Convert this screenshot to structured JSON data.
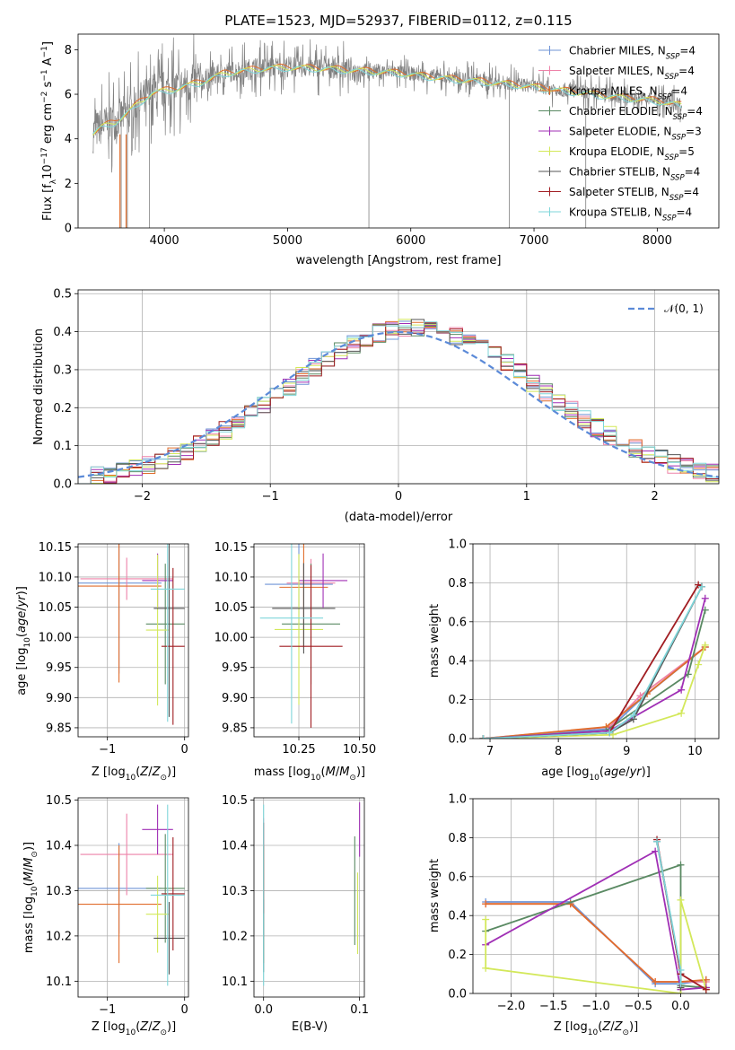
{
  "colors": {
    "chab_miles": "#6f94d6",
    "salp_miles": "#ee82a8",
    "krou_miles": "#e06d2c",
    "chab_elodie": "#5a8a63",
    "salp_elodie": "#a02fb5",
    "krou_elodie": "#d3e85a",
    "chab_stelib": "#555555",
    "salp_stelib": "#a11d22",
    "krou_stelib": "#7fd6da",
    "spec_grey": "#808080",
    "gauss": "#5b8ad8"
  },
  "chart_data": [
    {
      "id": "spectrum",
      "type": "line",
      "title": "PLATE=1523, MJD=52937, FIBERID=0112, z=0.115",
      "xlabel": "wavelength [Angstrom, rest frame]",
      "ylabel": "Flux [f",
      "ylabel_parts": [
        "Flux [f",
        "λ",
        "10",
        "−17",
        " erg cm",
        "−2",
        " s",
        "−1",
        " A",
        "−1",
        "]"
      ],
      "xlim": [
        3300,
        8500
      ],
      "ylim": [
        0,
        8.7
      ],
      "xticks": [
        4000,
        5000,
        6000,
        7000,
        8000
      ],
      "yticks": [
        0,
        2,
        4,
        6,
        8
      ],
      "legend": [
        {
          "name": "Chabrier MILES, N",
          "sub": "SSP",
          "val": "=4",
          "color_key": "chab_miles"
        },
        {
          "name": "Salpeter MILES, N",
          "sub": "SSP",
          "val": "=4",
          "color_key": "salp_miles"
        },
        {
          "name": "Kroupa MILES, N",
          "sub": "SSP",
          "val": "=4",
          "color_key": "krou_miles"
        },
        {
          "name": "Chabrier ELODIE, N",
          "sub": "SSP",
          "val": "=4",
          "color_key": "chab_elodie"
        },
        {
          "name": "Salpeter ELODIE, N",
          "sub": "SSP",
          "val": "=3",
          "color_key": "salp_elodie"
        },
        {
          "name": "Kroupa ELODIE, N",
          "sub": "SSP",
          "val": "=5",
          "color_key": "krou_elodie"
        },
        {
          "name": "Chabrier STELIB, N",
          "sub": "SSP",
          "val": "=4",
          "color_key": "chab_stelib"
        },
        {
          "name": "Salpeter STELIB, N",
          "sub": "SSP",
          "val": "=4",
          "color_key": "salp_stelib"
        },
        {
          "name": "Kroupa STELIB, N",
          "sub": "SSP",
          "val": "=4",
          "color_key": "krou_stelib"
        }
      ],
      "continuum": [
        [
          3420,
          4.3
        ],
        [
          3500,
          4.6
        ],
        [
          3600,
          4.8
        ],
        [
          3700,
          5.2
        ],
        [
          3800,
          5.7
        ],
        [
          3900,
          6.1
        ],
        [
          4000,
          6.2
        ],
        [
          4100,
          6.3
        ],
        [
          4300,
          6.6
        ],
        [
          4500,
          7.0
        ],
        [
          4800,
          7.2
        ],
        [
          5000,
          7.25
        ],
        [
          5300,
          7.2
        ],
        [
          5600,
          7.1
        ],
        [
          5900,
          7.0
        ],
        [
          6200,
          6.8
        ],
        [
          6500,
          6.65
        ],
        [
          6800,
          6.5
        ],
        [
          7100,
          6.3
        ],
        [
          7400,
          6.1
        ],
        [
          7700,
          5.9
        ],
        [
          8000,
          5.75
        ],
        [
          8200,
          5.55
        ]
      ],
      "spikes_down": [
        3650,
        3700,
        3880,
        5660,
        6800,
        7420
      ],
      "noise_amp": 0.9
    },
    {
      "id": "residuals",
      "type": "step",
      "xlabel": "(data-model)/error",
      "ylabel": "Normed distribution",
      "xlim": [
        -2.5,
        2.5
      ],
      "ylim": [
        0,
        0.51
      ],
      "xticks": [
        -2,
        -1,
        0,
        1,
        2
      ],
      "yticks": [
        0.0,
        0.1,
        0.2,
        0.3,
        0.4,
        0.5
      ],
      "legend_label": "𝒩(0, 1)",
      "bin_width": 0.1
    },
    {
      "id": "age_vs_Z",
      "type": "errorbar",
      "xlabel": "Z [log",
      "ylabel": "age  [log",
      "xlim": [
        -1.38,
        0.05
      ],
      "ylim": [
        9.835,
        10.155
      ],
      "xticks": [
        -1,
        0
      ],
      "yticks": [
        9.85,
        9.9,
        9.95,
        10.0,
        10.05,
        10.1,
        10.15
      ],
      "points": [
        {
          "color_key": "chab_miles",
          "x": -0.85,
          "xe": 0.55,
          "y": 10.09,
          "ye": 0.15
        },
        {
          "color_key": "salp_miles",
          "x": -0.75,
          "xe": 0.6,
          "y": 10.097,
          "ye": 0.035
        },
        {
          "color_key": "krou_miles",
          "x": -0.85,
          "xe": 0.55,
          "y": 10.085,
          "ye": 0.16
        },
        {
          "color_key": "chab_elodie",
          "x": -0.25,
          "xe": 0.25,
          "y": 10.022,
          "ye": 0.1
        },
        {
          "color_key": "salp_elodie",
          "x": -0.35,
          "xe": 0.2,
          "y": 10.094,
          "ye": 0.045
        },
        {
          "color_key": "krou_elodie",
          "x": -0.35,
          "xe": 0.15,
          "y": 10.012,
          "ye": 0.125
        },
        {
          "color_key": "chab_stelib",
          "x": -0.2,
          "xe": 0.2,
          "y": 10.048,
          "ye": 0.18
        },
        {
          "color_key": "salp_stelib",
          "x": -0.15,
          "xe": 0.15,
          "y": 9.985,
          "ye": 0.13
        },
        {
          "color_key": "krou_stelib",
          "x": -0.22,
          "xe": 0.22,
          "y": 10.08,
          "ye": 0.22
        }
      ]
    },
    {
      "id": "age_vs_mass",
      "type": "errorbar",
      "xlabel": "mass [log",
      "ylabel": "",
      "xlim": [
        10.065,
        10.52
      ],
      "ylim": [
        9.835,
        10.155
      ],
      "xticks": [
        10.25,
        10.5
      ],
      "yticks": [
        9.85,
        9.9,
        9.95,
        10.0,
        10.05,
        10.1,
        10.15
      ],
      "points": [
        {
          "color_key": "chab_miles",
          "x": 10.25,
          "xe": 0.14,
          "y": 10.088,
          "ye": 0.09
        },
        {
          "color_key": "salp_miles",
          "x": 10.3,
          "xe": 0.1,
          "y": 10.09,
          "ye": 0.04
        },
        {
          "color_key": "krou_miles",
          "x": 10.27,
          "xe": 0.1,
          "y": 10.083,
          "ye": 0.1
        },
        {
          "color_key": "chab_elodie",
          "x": 10.3,
          "xe": 0.12,
          "y": 10.022,
          "ye": 0.1
        },
        {
          "color_key": "salp_elodie",
          "x": 10.35,
          "xe": 0.1,
          "y": 10.094,
          "ye": 0.045
        },
        {
          "color_key": "krou_elodie",
          "x": 10.25,
          "xe": 0.1,
          "y": 10.013,
          "ye": 0.125
        },
        {
          "color_key": "chab_stelib",
          "x": 10.27,
          "xe": 0.13,
          "y": 10.048,
          "ye": 0.075
        },
        {
          "color_key": "salp_stelib",
          "x": 10.3,
          "xe": 0.13,
          "y": 9.985,
          "ye": 0.135
        },
        {
          "color_key": "krou_stelib",
          "x": 10.22,
          "xe": 0.13,
          "y": 10.032,
          "ye": 0.175
        }
      ]
    },
    {
      "id": "massweight_vs_age",
      "type": "line",
      "xlabel": "age  [log",
      "ylabel": "mass weight",
      "xlim": [
        6.75,
        10.35
      ],
      "ylim": [
        0,
        1.0
      ],
      "xticks": [
        7,
        8,
        9,
        10
      ],
      "yticks": [
        0.0,
        0.2,
        0.4,
        0.6,
        0.8,
        1.0
      ],
      "series": [
        {
          "color_key": "chab_miles",
          "x": [
            6.9,
            8.75,
            9.2,
            10.15
          ],
          "y": [
            0.0,
            0.05,
            0.2,
            0.47
          ]
        },
        {
          "color_key": "salp_miles",
          "x": [
            6.9,
            8.75,
            9.2,
            10.15
          ],
          "y": [
            0.0,
            0.06,
            0.22,
            0.47
          ]
        },
        {
          "color_key": "krou_miles",
          "x": [
            6.9,
            8.7,
            9.3,
            10.15
          ],
          "y": [
            0.0,
            0.06,
            0.23,
            0.47
          ]
        },
        {
          "color_key": "chab_elodie",
          "x": [
            6.9,
            8.7,
            9.9,
            10.15
          ],
          "y": [
            0.0,
            0.04,
            0.33,
            0.66
          ]
        },
        {
          "color_key": "salp_elodie",
          "x": [
            6.9,
            8.75,
            9.8,
            10.15
          ],
          "y": [
            0.0,
            0.04,
            0.25,
            0.72
          ]
        },
        {
          "color_key": "krou_elodie",
          "x": [
            6.9,
            8.8,
            9.8,
            10.05,
            10.15
          ],
          "y": [
            0.0,
            0.02,
            0.13,
            0.38,
            0.48
          ]
        },
        {
          "color_key": "chab_stelib",
          "x": [
            6.9,
            8.75,
            9.1,
            10.1
          ],
          "y": [
            0.0,
            0.03,
            0.1,
            0.78
          ]
        },
        {
          "color_key": "salp_stelib",
          "x": [
            6.9,
            8.75,
            10.05,
            10.1
          ],
          "y": [
            0.0,
            0.03,
            0.79,
            0.78
          ]
        },
        {
          "color_key": "krou_stelib",
          "x": [
            6.9,
            8.75,
            9.1,
            10.1
          ],
          "y": [
            0.0,
            0.03,
            0.12,
            0.78
          ]
        }
      ]
    },
    {
      "id": "mass_vs_Z",
      "type": "errorbar",
      "xlabel": "Z [log",
      "ylabel": "mass [log",
      "xlim": [
        -1.38,
        0.05
      ],
      "ylim": [
        10.065,
        10.505
      ],
      "xticks": [
        -1,
        0
      ],
      "yticks": [
        10.1,
        10.2,
        10.3,
        10.4,
        10.5
      ],
      "points": [
        {
          "color_key": "chab_miles",
          "x": -0.85,
          "xe": 0.55,
          "y": 10.305,
          "ye": 0.1
        },
        {
          "color_key": "salp_miles",
          "x": -0.75,
          "xe": 0.6,
          "y": 10.38,
          "ye": 0.09
        },
        {
          "color_key": "krou_miles",
          "x": -0.85,
          "xe": 0.55,
          "y": 10.27,
          "ye": 0.13
        },
        {
          "color_key": "chab_elodie",
          "x": -0.25,
          "xe": 0.25,
          "y": 10.305,
          "ye": 0.12
        },
        {
          "color_key": "salp_elodie",
          "x": -0.35,
          "xe": 0.2,
          "y": 10.435,
          "ye": 0.055
        },
        {
          "color_key": "krou_elodie",
          "x": -0.35,
          "xe": 0.15,
          "y": 10.248,
          "ye": 0.085
        },
        {
          "color_key": "chab_stelib",
          "x": -0.2,
          "xe": 0.2,
          "y": 10.195,
          "ye": 0.08
        },
        {
          "color_key": "salp_stelib",
          "x": -0.15,
          "xe": 0.15,
          "y": 10.293,
          "ye": 0.125
        },
        {
          "color_key": "krou_stelib",
          "x": -0.22,
          "xe": 0.22,
          "y": 10.29,
          "ye": 0.2
        }
      ]
    },
    {
      "id": "mass_vs_ebv",
      "type": "errorbar",
      "xlabel": "E(B-V)",
      "ylabel": "",
      "xlim": [
        -0.01,
        0.105
      ],
      "ylim": [
        10.065,
        10.505
      ],
      "xticks": [
        0.0,
        0.1
      ],
      "xtick_labels": [
        "0.0",
        "0.1"
      ],
      "yticks": [
        10.1,
        10.2,
        10.3,
        10.4,
        10.5
      ],
      "points": [
        {
          "color_key": "chab_miles",
          "x": 0.0,
          "xe": 0,
          "y": 10.3,
          "ye": 0.1
        },
        {
          "color_key": "salp_miles",
          "x": 0.0,
          "xe": 0,
          "y": 10.38,
          "ye": 0.08
        },
        {
          "color_key": "krou_miles",
          "x": 0.0,
          "xe": 0,
          "y": 10.27,
          "ye": 0.13
        },
        {
          "color_key": "chab_elodie",
          "x": 0.095,
          "xe": 0,
          "y": 10.3,
          "ye": 0.12
        },
        {
          "color_key": "salp_elodie",
          "x": 0.1,
          "xe": 0,
          "y": 10.435,
          "ye": 0.06
        },
        {
          "color_key": "krou_elodie",
          "x": 0.098,
          "xe": 0,
          "y": 10.25,
          "ye": 0.09
        },
        {
          "color_key": "chab_stelib",
          "x": 0.0,
          "xe": 0,
          "y": 10.2,
          "ye": 0.08
        },
        {
          "color_key": "salp_stelib",
          "x": 0.0,
          "xe": 0,
          "y": 10.35,
          "ye": 0.1
        },
        {
          "color_key": "krou_stelib",
          "x": 0.0,
          "xe": 0,
          "y": 10.29,
          "ye": 0.2
        }
      ]
    },
    {
      "id": "massweight_vs_Z",
      "type": "line",
      "xlabel": "Z [log",
      "ylabel": "mass weight",
      "xlim": [
        -2.45,
        0.45
      ],
      "ylim": [
        0,
        1.0
      ],
      "xticks": [
        -2.0,
        -1.5,
        -1.0,
        -0.5,
        0.0
      ],
      "xtick_labels": [
        "−2.0",
        "−1.5",
        "−1.0",
        "−0.5",
        "0.0"
      ],
      "yticks": [
        0.0,
        0.2,
        0.4,
        0.6,
        0.8,
        1.0
      ],
      "series": [
        {
          "color_key": "chab_miles",
          "x": [
            -2.3,
            -1.3,
            -0.3,
            0.0,
            0.3
          ],
          "y": [
            0.47,
            0.47,
            0.05,
            0.05,
            0.07
          ]
        },
        {
          "color_key": "salp_miles",
          "x": [
            -2.3,
            -1.3,
            -0.3,
            0.0,
            0.3
          ],
          "y": [
            0.46,
            0.46,
            0.06,
            0.06,
            0.06
          ]
        },
        {
          "color_key": "krou_miles",
          "x": [
            -2.3,
            -1.3,
            -0.3,
            0.0,
            0.3
          ],
          "y": [
            0.46,
            0.46,
            0.06,
            0.06,
            0.07
          ]
        },
        {
          "color_key": "chab_elodie",
          "x": [
            -2.3,
            0.0,
            0.0,
            0.3
          ],
          "y": [
            0.32,
            0.66,
            0.04,
            0.03
          ]
        },
        {
          "color_key": "salp_elodie",
          "x": [
            -2.3,
            -0.3,
            0.0,
            0.3
          ],
          "y": [
            0.25,
            0.73,
            0.02,
            0.03
          ]
        },
        {
          "color_key": "krou_elodie",
          "x": [
            -2.3,
            -2.3,
            0.0,
            0.0,
            0.3
          ],
          "y": [
            0.38,
            0.13,
            0.0,
            0.48,
            0.02
          ]
        },
        {
          "color_key": "chab_stelib",
          "x": [
            -0.28,
            0.0,
            0.0
          ],
          "y": [
            0.78,
            0.1,
            0.03
          ]
        },
        {
          "color_key": "salp_stelib",
          "x": [
            -0.28,
            0.0,
            0.3
          ],
          "y": [
            0.79,
            0.1,
            0.02
          ]
        },
        {
          "color_key": "krou_stelib",
          "x": [
            -0.28,
            0.0,
            0.0
          ],
          "y": [
            0.78,
            0.12,
            0.05
          ]
        }
      ]
    }
  ]
}
